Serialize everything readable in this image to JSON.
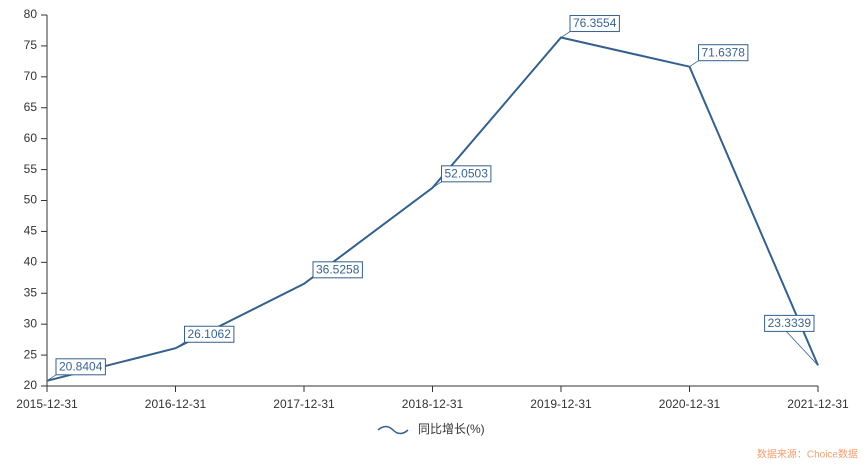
{
  "chart_data": {
    "type": "line",
    "categories": [
      "2015-12-31",
      "2016-12-31",
      "2017-12-31",
      "2018-12-31",
      "2019-12-31",
      "2020-12-31",
      "2021-12-31"
    ],
    "series": [
      {
        "name": "同比增长(%)",
        "color": "#33608c",
        "values": [
          20.8404,
          26.1062,
          36.5258,
          52.0503,
          76.3554,
          71.6378,
          23.3339
        ]
      }
    ],
    "ylim": [
      20,
      80
    ],
    "yticks": [
      20,
      25,
      30,
      35,
      40,
      45,
      50,
      55,
      60,
      65,
      70,
      75,
      80
    ],
    "grid": false,
    "legend": "bottom",
    "source": "数据来源：Choice数据"
  }
}
